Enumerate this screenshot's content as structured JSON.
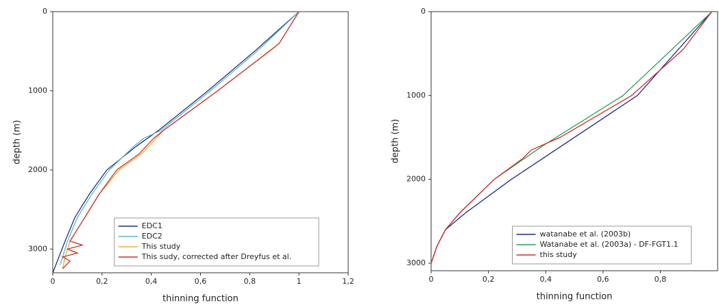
{
  "chart_data": [
    {
      "type": "line",
      "xlabel": "thinning function",
      "ylabel": "depth (m)",
      "xlim": [
        0,
        1.2
      ],
      "ylim": [
        3300,
        0
      ],
      "xticks": [
        0,
        {
          "value": 0.2,
          "label": "0,2"
        },
        {
          "value": 0.4,
          "label": "0,4"
        },
        {
          "value": 0.6,
          "label": "0,6"
        },
        {
          "value": 0.8,
          "label": "0,8"
        },
        1,
        {
          "value": 1.2,
          "label": "1,2"
        }
      ],
      "yticks": [
        0,
        1000,
        2000,
        3000
      ],
      "legend": "lower right",
      "series": [
        {
          "name": "EDC1",
          "color": "#1f2f7a",
          "x": [
            1.0,
            0.82,
            0.63,
            0.43,
            0.34,
            0.22,
            0.15,
            0.09,
            0.05,
            0.025,
            0
          ],
          "values": [
            0,
            500,
            1000,
            1500,
            1700,
            2000,
            2300,
            2600,
            2900,
            3100,
            3300
          ]
        },
        {
          "name": "EDC2",
          "color": "#5fb3c9",
          "x": [
            1.0,
            0.83,
            0.64,
            0.44,
            0.37,
            0.33,
            0.23,
            0.16,
            0.1,
            0.06,
            0.03
          ],
          "values": [
            0,
            500,
            1000,
            1500,
            1600,
            1700,
            2000,
            2300,
            2600,
            2900,
            3200
          ]
        },
        {
          "name": "This study",
          "color": "#f0a830",
          "x": [
            1.0,
            0.92,
            0.67,
            0.45,
            0.36,
            0.27,
            0.19,
            0.13,
            0.07,
            0.05,
            0.04
          ],
          "values": [
            0,
            400,
            1000,
            1500,
            1800,
            2000,
            2300,
            2600,
            2900,
            3100,
            3250
          ]
        },
        {
          "name": "This sudy, corrected after Dreyfus et al.",
          "color": "#c8302a",
          "x": [
            1.0,
            0.92,
            0.88,
            0.67,
            0.45,
            0.41,
            0.35,
            0.26,
            0.19,
            0.13,
            0.09,
            0.07,
            0.12,
            0.06,
            0.1,
            0.04,
            0.07,
            0.04
          ],
          "values": [
            0,
            400,
            500,
            1000,
            1500,
            1600,
            1800,
            2000,
            2300,
            2600,
            2800,
            2900,
            2950,
            3000,
            3050,
            3100,
            3150,
            3250
          ]
        }
      ]
    },
    {
      "type": "line",
      "xlabel": "thinning function",
      "ylabel": "depth (m)",
      "xlim": [
        0,
        1
      ],
      "ylim": [
        3090,
        0
      ],
      "xticks": [
        0,
        {
          "value": 0.2,
          "label": "0,2"
        },
        {
          "value": 0.4,
          "label": "0,4"
        },
        {
          "value": 0.6,
          "label": "0,6"
        },
        {
          "value": 0.8,
          "label": "0,8"
        }
      ],
      "yticks": [
        0,
        1000,
        2000,
        3000
      ],
      "legend": "lower center",
      "series": [
        {
          "name": "watanabe et al. (2003b)",
          "color": "#1c2a8c",
          "x": [
            0.98,
            0.72,
            0.28,
            0.12,
            0.05,
            0.02,
            0
          ],
          "values": [
            0,
            1000,
            2000,
            2400,
            2600,
            2800,
            3000
          ]
        },
        {
          "name": "Watanabe et al. (2003a) - DF-FGT1.1",
          "color": "#2f9a5a",
          "x": [
            0.98,
            0.67,
            0.39,
            0.22,
            0.1,
            0.05,
            0.02,
            0
          ],
          "values": [
            0,
            1000,
            1600,
            2000,
            2400,
            2600,
            2800,
            3000
          ]
        },
        {
          "name": "this study",
          "color": "#d42a2a",
          "x": [
            0.98,
            0.88,
            0.7,
            0.45,
            0.35,
            0.32,
            0.22,
            0.1,
            0.05,
            0.02,
            0
          ],
          "values": [
            0,
            450,
            1000,
            1500,
            1650,
            1750,
            2000,
            2400,
            2600,
            2800,
            3000
          ]
        }
      ]
    }
  ]
}
